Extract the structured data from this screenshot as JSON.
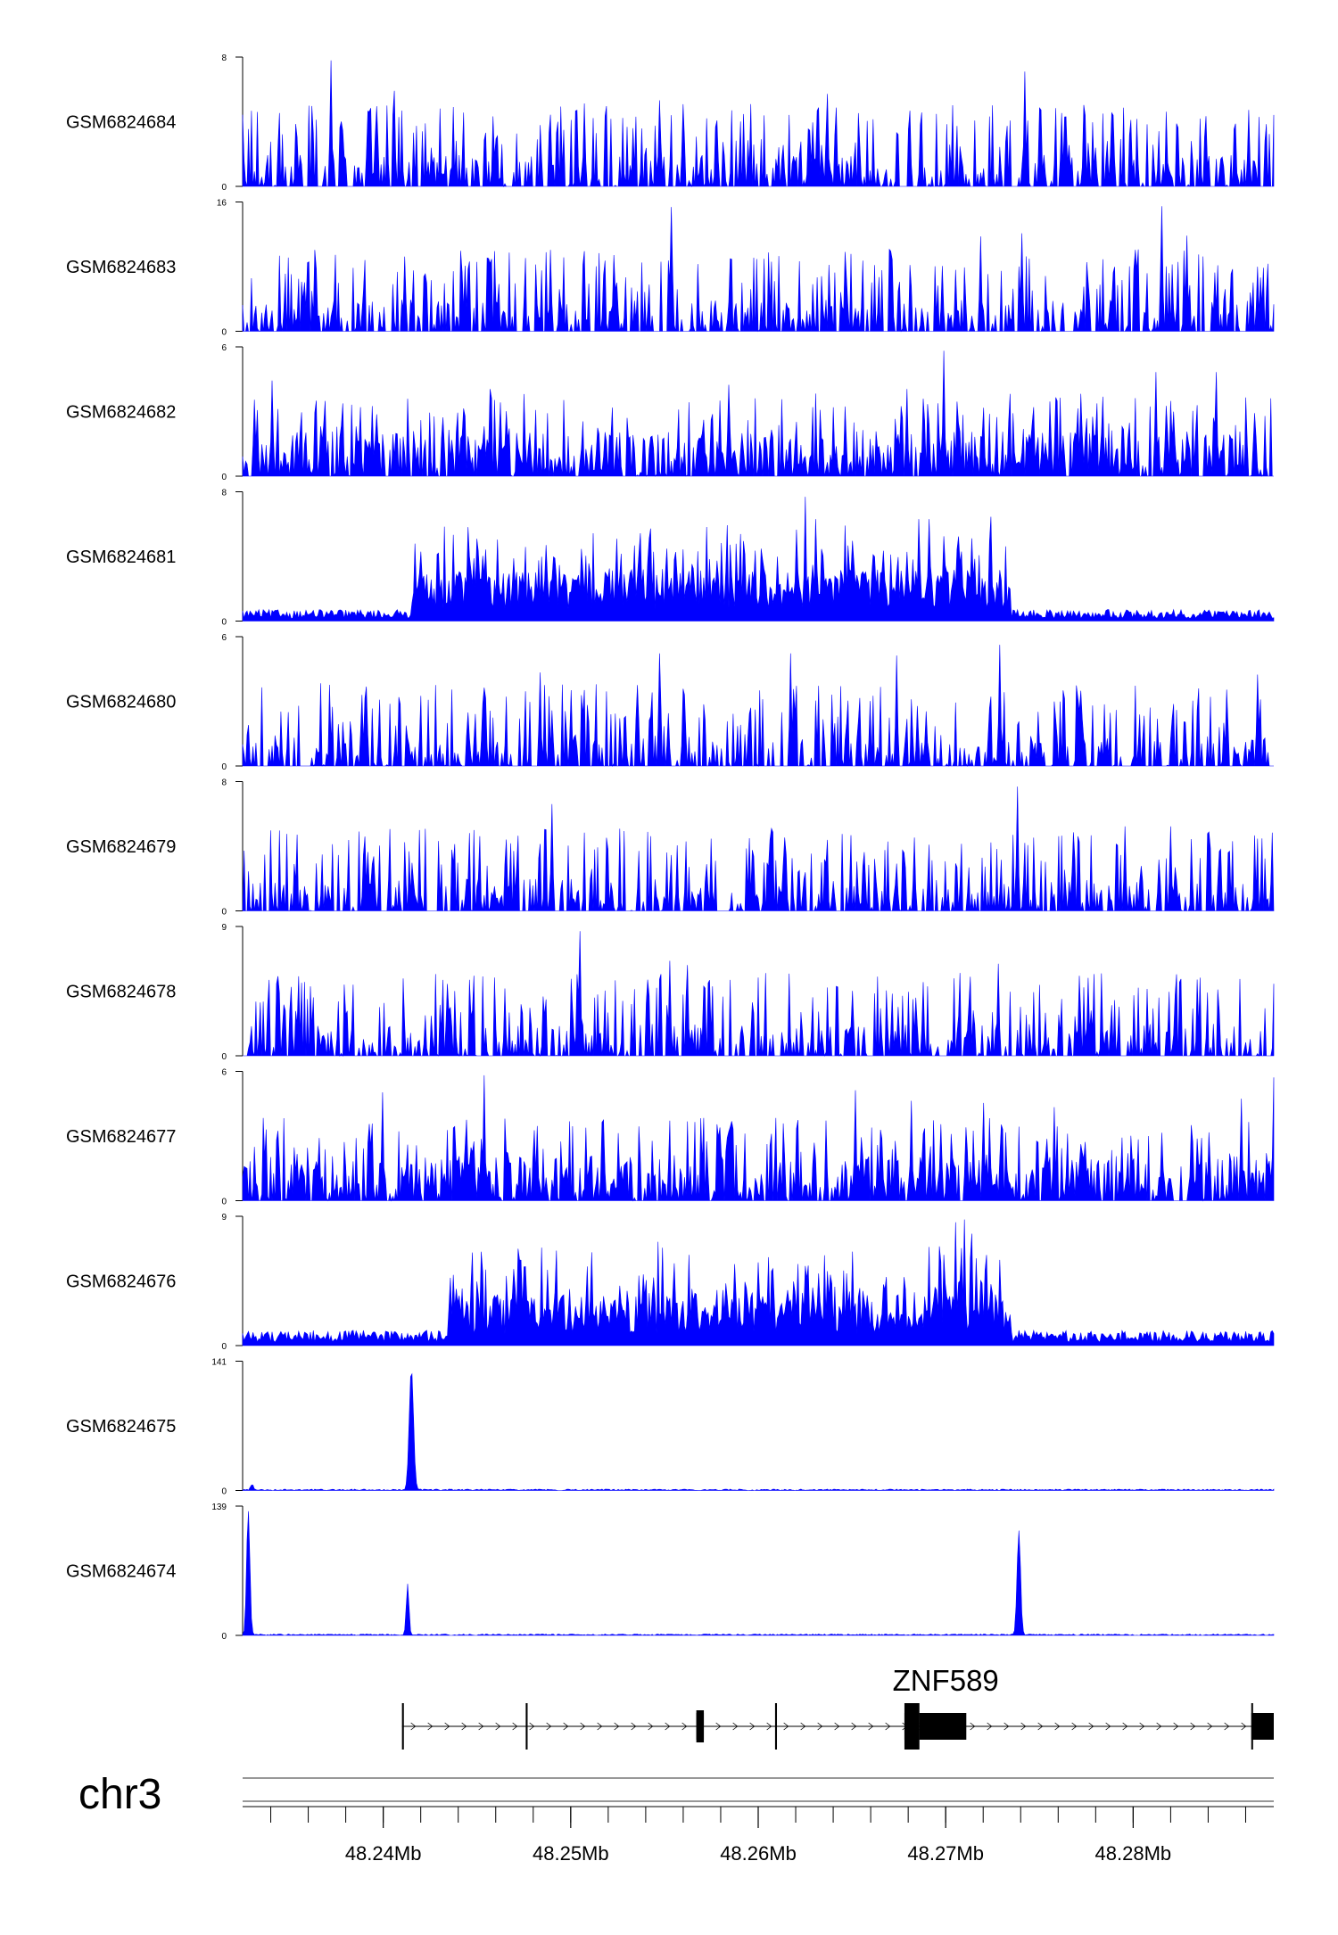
{
  "chart_data": {
    "type": "area",
    "title": "",
    "fill_color": "#0000ff",
    "genome_region": {
      "chromosome": "chr3",
      "x_range": [
        48.2325,
        48.2875
      ],
      "x_unit": "Mb"
    },
    "x_ticks": [
      {
        "value": 48.24,
        "label": "48.24Mb"
      },
      {
        "value": 48.25,
        "label": "48.25Mb"
      },
      {
        "value": 48.26,
        "label": "48.26Mb"
      },
      {
        "value": 48.27,
        "label": "48.27Mb"
      },
      {
        "value": 48.28,
        "label": "48.28Mb"
      }
    ],
    "tracks": [
      {
        "name": "GSM6824684",
        "ymin_label": "0",
        "ymax_label": "8",
        "ymax": 8,
        "pattern": "sparse",
        "peaks": [
          [
            48.2372,
            7.9
          ],
          [
            48.2406,
            6.0
          ],
          [
            48.2507,
            5.2
          ],
          [
            48.2547,
            5.4
          ],
          [
            48.2637,
            5.8
          ],
          [
            48.2742,
            7.2
          ],
          [
            48.2762,
            4.6
          ],
          [
            48.2839,
            4.4
          ],
          [
            48.2862,
            4.8
          ]
        ]
      },
      {
        "name": "GSM6824683",
        "ymin_label": "0",
        "ymax_label": "16",
        "ymax": 16,
        "pattern": "sparse",
        "peaks": [
          [
            48.2554,
            15.6
          ],
          [
            48.2698,
            8.2
          ],
          [
            48.2719,
            11.9
          ],
          [
            48.2741,
            12.3
          ],
          [
            48.2815,
            15.7
          ],
          [
            48.2829,
            12.0
          ],
          [
            48.2866,
            8.1
          ]
        ]
      },
      {
        "name": "GSM6824682",
        "ymin_label": "0",
        "ymax_label": "6",
        "ymax": 6,
        "pattern": "dense",
        "peaks": [
          [
            48.2341,
            4.5
          ],
          [
            48.2394,
            3.3
          ],
          [
            48.2457,
            4.1
          ],
          [
            48.2584,
            4.3
          ],
          [
            48.2679,
            4.1
          ],
          [
            48.2699,
            5.9
          ],
          [
            48.2759,
            3.7
          ],
          [
            48.2812,
            4.9
          ],
          [
            48.2844,
            4.9
          ]
        ]
      },
      {
        "name": "GSM6824681",
        "ymin_label": "0",
        "ymax_label": "8",
        "ymax": 8,
        "pattern": "regional",
        "region": [
          48.2415,
          48.2735
        ],
        "base_in": 1.8,
        "base_out": 0.4,
        "peaks": [
          [
            48.2543,
            5.8
          ],
          [
            48.2625,
            7.8
          ],
          [
            48.2631,
            6.4
          ],
          [
            48.2686,
            6.4
          ],
          [
            48.2691,
            6.4
          ],
          [
            48.2508,
            4.1
          ]
        ]
      },
      {
        "name": "GSM6824680",
        "ymin_label": "0",
        "ymax_label": "6",
        "ymax": 6,
        "pattern": "sparse",
        "peaks": [
          [
            48.2547,
            5.3
          ],
          [
            48.2617,
            5.3
          ],
          [
            48.2674,
            5.2
          ],
          [
            48.2729,
            5.7
          ],
          [
            48.2866,
            4.3
          ],
          [
            48.2484,
            4.4
          ]
        ]
      },
      {
        "name": "GSM6824679",
        "ymin_label": "0",
        "ymax_label": "8",
        "ymax": 8,
        "pattern": "sparse",
        "peaks": [
          [
            48.249,
            6.7
          ],
          [
            48.2738,
            7.8
          ],
          [
            48.2683,
            4.6
          ],
          [
            48.2614,
            4.6
          ],
          [
            48.282,
            5.3
          ],
          [
            48.2796,
            5.3
          ]
        ]
      },
      {
        "name": "GSM6824678",
        "ymin_label": "0",
        "ymax_label": "9",
        "ymax": 9,
        "pattern": "sparse",
        "peaks": [
          [
            48.2505,
            8.8
          ],
          [
            48.2553,
            6.7
          ],
          [
            48.2562,
            6.4
          ],
          [
            48.2688,
            5.2
          ],
          [
            48.2728,
            6.5
          ],
          [
            48.2776,
            5.5
          ],
          [
            48.2822,
            4.3
          ]
        ]
      },
      {
        "name": "GSM6824677",
        "ymin_label": "0",
        "ymax_label": "6",
        "ymax": 6,
        "pattern": "dense",
        "peaks": [
          [
            48.24,
            5.1
          ],
          [
            48.2454,
            5.9
          ],
          [
            48.2652,
            5.2
          ],
          [
            48.2682,
            4.7
          ],
          [
            48.272,
            4.6
          ],
          [
            48.2758,
            4.4
          ],
          [
            48.2858,
            4.8
          ],
          [
            48.2875,
            5.8
          ]
        ]
      },
      {
        "name": "GSM6824676",
        "ymin_label": "0",
        "ymax_label": "9",
        "ymax": 9,
        "pattern": "regional",
        "region": [
          48.2435,
          48.2735
        ],
        "base_in": 2.0,
        "base_out": 0.6,
        "peaks": [
          [
            48.2492,
            6.7
          ],
          [
            48.2563,
            6.4
          ],
          [
            48.2647,
            5.1
          ],
          [
            48.2697,
            7.0
          ],
          [
            48.2705,
            8.7
          ],
          [
            48.271,
            8.9
          ],
          [
            48.2714,
            7.9
          ],
          [
            48.2721,
            5.3
          ]
        ]
      },
      {
        "name": "GSM6824675",
        "ymin_label": "0",
        "ymax_label": "141",
        "ymax": 141,
        "pattern": "peaks",
        "noise": 1.5,
        "gauss": [
          [
            48.2415,
            134,
            0.00016
          ],
          [
            48.233,
            6,
            0.0001
          ]
        ]
      },
      {
        "name": "GSM6824674",
        "ymin_label": "0",
        "ymax_label": "139",
        "ymax": 139,
        "pattern": "peaks",
        "noise": 1.5,
        "gauss": [
          [
            48.2328,
            137,
            0.00012
          ],
          [
            48.2413,
            55,
            0.0001
          ],
          [
            48.2739,
            114,
            0.00013
          ]
        ]
      }
    ],
    "gene_track": {
      "name": "ZNF589",
      "strand": "+",
      "start": 48.241,
      "end": 48.2875,
      "exons": [
        {
          "start": 48.241,
          "end": 48.2411,
          "coding": false
        },
        {
          "start": 48.2476,
          "end": 48.2477,
          "coding": false
        },
        {
          "start": 48.2567,
          "end": 48.2571,
          "coding": true
        },
        {
          "start": 48.2609,
          "end": 48.261,
          "coding": false
        },
        {
          "start": 48.2678,
          "end": 48.2686,
          "coding": true
        },
        {
          "start": 48.2686,
          "end": 48.2711,
          "coding": true
        },
        {
          "start": 48.2863,
          "end": 48.2875,
          "coding": true
        }
      ]
    }
  }
}
